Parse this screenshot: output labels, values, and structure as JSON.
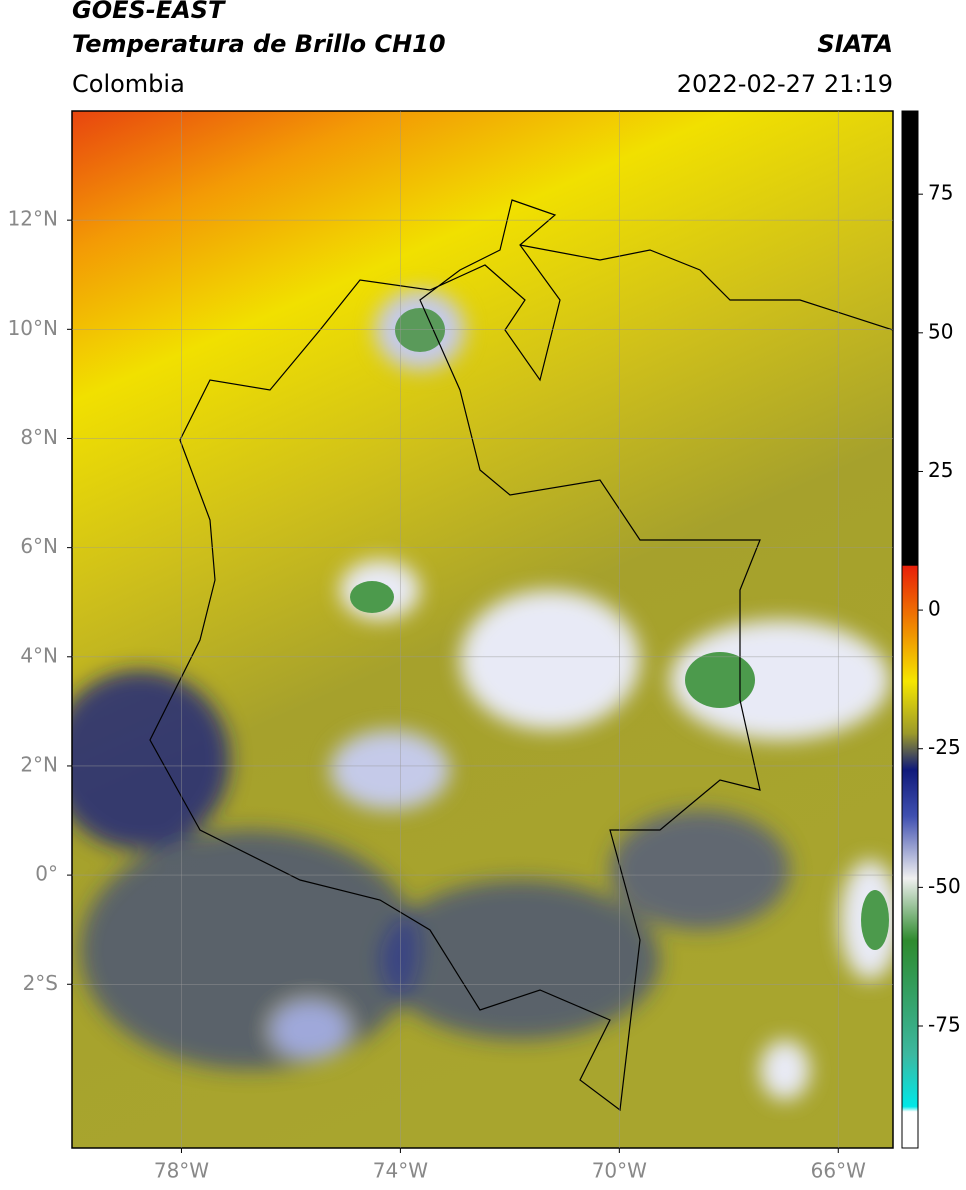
{
  "header": {
    "satellite": "GOES-EAST",
    "product": "Temperatura de Brillo CH10",
    "source": "SIATA",
    "region": "Colombia",
    "datetime": "2022-02-27 21:19"
  },
  "chart_data": {
    "type": "map",
    "xlim": [
      -80,
      -65
    ],
    "ylim": [
      -5,
      14
    ],
    "xticks": [
      {
        "value": -78,
        "label": "78°W"
      },
      {
        "value": -74,
        "label": "74°W"
      },
      {
        "value": -70,
        "label": "70°W"
      },
      {
        "value": -66,
        "label": "66°W"
      }
    ],
    "yticks": [
      {
        "value": 12,
        "label": "12°N"
      },
      {
        "value": 10,
        "label": "10°N"
      },
      {
        "value": 8,
        "label": "8°N"
      },
      {
        "value": 6,
        "label": "6°N"
      },
      {
        "value": 4,
        "label": "4°N"
      },
      {
        "value": 2,
        "label": "2°N"
      },
      {
        "value": 0,
        "label": "0°"
      },
      {
        "value": -2,
        "label": "2°S"
      }
    ],
    "grid": true,
    "colorbar": {
      "lim": [
        -97,
        90
      ],
      "ticks": [
        75,
        50,
        25,
        0,
        -25,
        -50,
        -75
      ]
    }
  }
}
